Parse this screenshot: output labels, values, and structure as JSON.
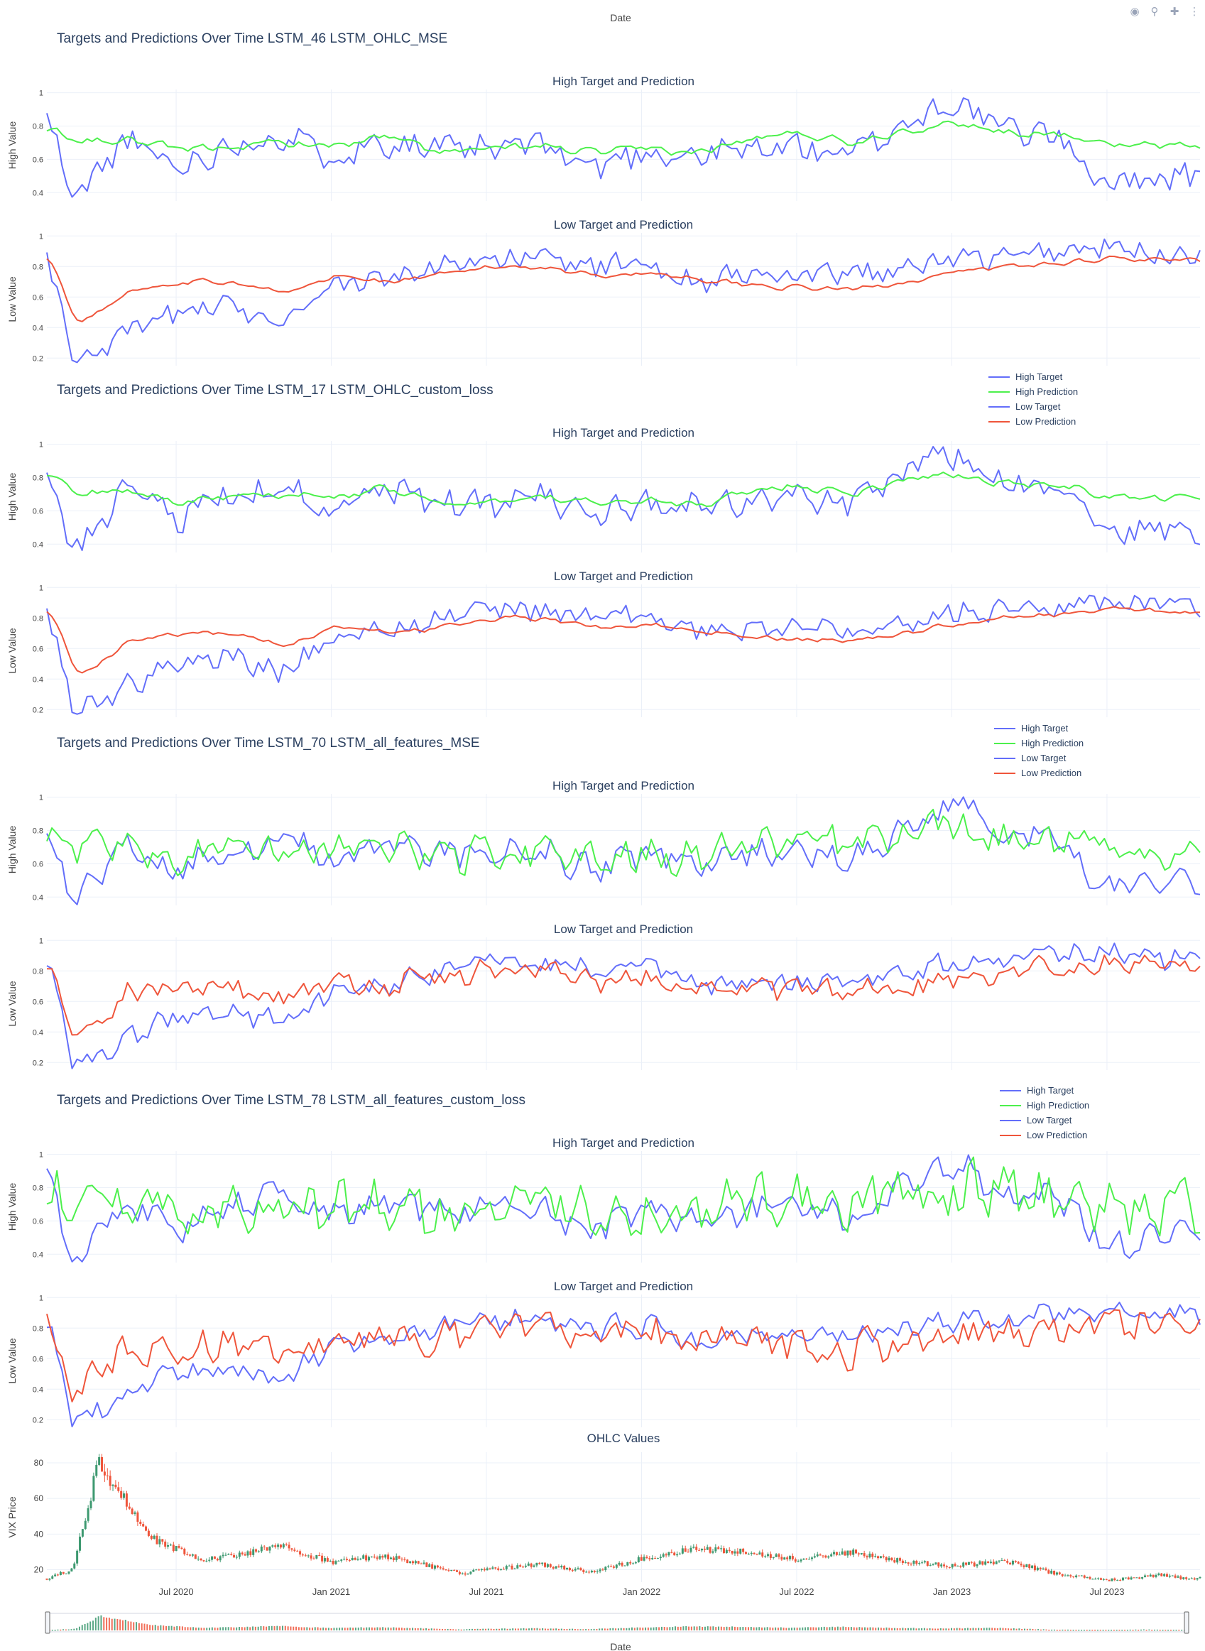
{
  "page": {
    "top_label": "Date",
    "bottom_label": "Date"
  },
  "toolbar": {
    "camera_icon": "camera-icon",
    "zoom_icon": "zoom-icon",
    "pan_icon": "pan-icon",
    "more_icon": "more-icon"
  },
  "colors": {
    "high_target": "#636efa",
    "high_prediction": "#4cf04c",
    "low_target": "#636efa",
    "low_prediction": "#ef553b",
    "increasing": "#3d9970",
    "decreasing": "#ef553b"
  },
  "legend": {
    "items": [
      "High Target",
      "High Prediction",
      "Low Target",
      "Low Prediction"
    ]
  },
  "groups": [
    {
      "title": "Targets and Predictions Over Time",
      "run": "LSTM_46",
      "model": "LSTM_OHLC_MSE",
      "pred_style": "smooth"
    },
    {
      "title": "Targets and Predictions Over Time",
      "run": "LSTM_17",
      "model": "LSTM_OHLC_custom_loss",
      "pred_style": "smooth"
    },
    {
      "title": "Targets and Predictions Over Time",
      "run": "LSTM_70",
      "model": "LSTM_all_features_MSE",
      "pred_style": "noisy"
    },
    {
      "title": "Targets and Predictions Over Time",
      "run": "LSTM_78",
      "model": "LSTM_all_features_custom_loss",
      "pred_style": "wild"
    }
  ],
  "chart_data": [
    {
      "type": "line",
      "title": "High Target and Prediction",
      "ylabel": "High Value",
      "ylim": [
        0.35,
        1.02
      ],
      "yticks": [
        "0.4",
        "0.6",
        "0.8",
        "1"
      ],
      "series": [
        {
          "name": "High Target",
          "x": [
            "2020-02",
            "2020-03",
            "2020-05",
            "2020-07",
            "2020-09",
            "2020-11",
            "2021-01",
            "2021-03",
            "2021-05",
            "2021-07",
            "2021-09",
            "2021-11",
            "2022-01",
            "2022-03",
            "2022-05",
            "2022-07",
            "2022-09",
            "2022-11",
            "2023-01",
            "2023-03",
            "2023-05",
            "2023-07",
            "2023-09"
          ],
          "values": [
            0.85,
            0.35,
            0.72,
            0.55,
            0.68,
            0.75,
            0.62,
            0.72,
            0.66,
            0.65,
            0.7,
            0.55,
            0.65,
            0.62,
            0.66,
            0.68,
            0.62,
            0.8,
            0.95,
            0.78,
            0.75,
            0.45,
            0.5
          ]
        },
        {
          "name": "High Prediction",
          "x": [
            "2020-02",
            "2020-03",
            "2020-05",
            "2020-07",
            "2020-09",
            "2020-11",
            "2021-01",
            "2021-03",
            "2021-05",
            "2021-07",
            "2021-09",
            "2021-11",
            "2022-01",
            "2022-03",
            "2022-05",
            "2022-07",
            "2022-09",
            "2022-11",
            "2023-01",
            "2023-03",
            "2023-05",
            "2023-07",
            "2023-09"
          ],
          "values": [
            0.8,
            0.7,
            0.72,
            0.65,
            0.68,
            0.7,
            0.68,
            0.74,
            0.64,
            0.66,
            0.68,
            0.64,
            0.66,
            0.64,
            0.72,
            0.76,
            0.7,
            0.78,
            0.82,
            0.76,
            0.76,
            0.68,
            0.68
          ]
        }
      ]
    },
    {
      "type": "line",
      "title": "Low Target and Prediction",
      "ylabel": "Low Value",
      "ylim": [
        0.15,
        1.02
      ],
      "yticks": [
        "0.2",
        "0.4",
        "0.6",
        "0.8",
        "1"
      ],
      "series": [
        {
          "name": "Low Target",
          "x": [
            "2020-02",
            "2020-03",
            "2020-05",
            "2020-07",
            "2020-09",
            "2020-11",
            "2021-01",
            "2021-03",
            "2021-05",
            "2021-07",
            "2021-09",
            "2021-11",
            "2022-01",
            "2022-03",
            "2022-05",
            "2022-07",
            "2022-09",
            "2022-11",
            "2023-01",
            "2023-03",
            "2023-05",
            "2023-07",
            "2023-09"
          ],
          "values": [
            0.85,
            0.18,
            0.35,
            0.5,
            0.55,
            0.45,
            0.68,
            0.7,
            0.8,
            0.86,
            0.85,
            0.8,
            0.82,
            0.7,
            0.75,
            0.72,
            0.75,
            0.78,
            0.85,
            0.85,
            0.9,
            0.92,
            0.88
          ]
        },
        {
          "name": "Low Prediction",
          "x": [
            "2020-02",
            "2020-03",
            "2020-05",
            "2020-07",
            "2020-09",
            "2020-11",
            "2021-01",
            "2021-03",
            "2021-05",
            "2021-07",
            "2021-09",
            "2021-11",
            "2022-01",
            "2022-03",
            "2022-05",
            "2022-07",
            "2022-09",
            "2022-11",
            "2023-01",
            "2023-03",
            "2023-05",
            "2023-07",
            "2023-09"
          ],
          "values": [
            0.85,
            0.4,
            0.65,
            0.7,
            0.7,
            0.62,
            0.74,
            0.7,
            0.74,
            0.8,
            0.8,
            0.74,
            0.76,
            0.72,
            0.68,
            0.66,
            0.65,
            0.7,
            0.76,
            0.8,
            0.82,
            0.86,
            0.84
          ]
        }
      ]
    },
    {
      "type": "candlestick",
      "title": "OHLC Values",
      "ylabel": "VIX Price",
      "ylim": [
        13,
        86
      ],
      "yticks": [
        "20",
        "40",
        "60",
        "80"
      ],
      "xticks": [
        "Jul 2020",
        "Jan 2021",
        "Jul 2021",
        "Jan 2022",
        "Jul 2022",
        "Jan 2023",
        "Jul 2023"
      ],
      "close_profile": {
        "x": [
          "2020-02",
          "2020-03",
          "2020-04",
          "2020-06",
          "2020-08",
          "2020-10",
          "2020-11",
          "2021-01",
          "2021-03",
          "2021-06",
          "2021-09",
          "2021-11",
          "2022-01",
          "2022-03",
          "2022-05",
          "2022-07",
          "2022-09",
          "2022-11",
          "2023-01",
          "2023-03",
          "2023-05",
          "2023-07",
          "2023-09",
          "2023-10"
        ],
        "values": [
          15,
          20,
          80,
          38,
          25,
          30,
          34,
          24,
          28,
          18,
          23,
          19,
          26,
          32,
          30,
          26,
          30,
          25,
          22,
          25,
          18,
          14,
          17,
          15
        ]
      }
    }
  ]
}
